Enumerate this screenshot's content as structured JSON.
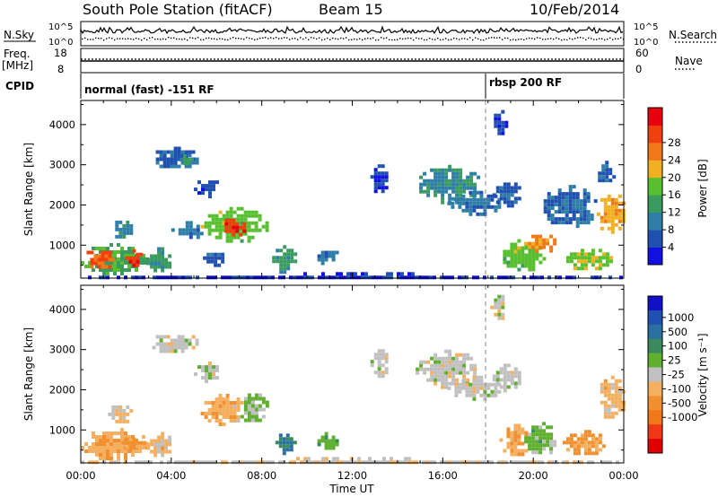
{
  "header": {
    "station": "South Pole Station (fitACF)",
    "beam": "Beam 15",
    "date": "10/Feb/2014"
  },
  "top_panels": {
    "nsky_label": "N.Sky",
    "nsearch_label": "N.Search",
    "nsky_ticks": [
      "10^5",
      "10^0"
    ],
    "nsearch_ticks": [
      "10^5",
      "10^0"
    ],
    "freq_label": "Freq.",
    "freq_unit": "[MHz]",
    "freq_ticks": [
      "18",
      "8"
    ],
    "nave_label": "Nave",
    "nave_ticks": [
      "60",
      "0"
    ],
    "cpid_label": "CPID",
    "cpid_modes": [
      {
        "name": "normal (fast) -151 RF",
        "start_hour": 0
      },
      {
        "name": "rbsp 200 RF",
        "start_hour": 18
      }
    ]
  },
  "colors": {
    "power_scale": [
      "#1010e0",
      "#2050b0",
      "#2e7ea8",
      "#3b9a60",
      "#58c030",
      "#f0b020",
      "#f07818",
      "#f04010",
      "#e80010"
    ],
    "velocity_scale": [
      "#e00000",
      "#f03818",
      "#f07818",
      "#f09030",
      "#f4b060",
      "#c0c0c0",
      "#60b030",
      "#3a8a5e",
      "#2a70a0",
      "#2050b0",
      "#1010c8"
    ]
  },
  "chart_data": [
    {
      "type": "heatmap",
      "name": "power",
      "xlabel": "",
      "ylabel": "Slant Range [km]",
      "xlim": [
        0,
        24
      ],
      "ylim": [
        180,
        4600
      ],
      "yticks": [
        "1000",
        "2000",
        "3000",
        "4000"
      ],
      "colorbar_label": "Power [dB]",
      "colorbar_ticks": [
        "4",
        "8",
        "12",
        "16",
        "20",
        "24",
        "28"
      ],
      "clim": [
        0,
        32
      ],
      "regions": [
        {
          "t0": 0.0,
          "t1": 2.9,
          "r0": 300,
          "r1": 1050,
          "v": 14
        },
        {
          "t0": 0.1,
          "t1": 1.4,
          "r0": 430,
          "r1": 950,
          "v": 25
        },
        {
          "t0": 1.8,
          "t1": 2.8,
          "r0": 520,
          "r1": 900,
          "v": 28
        },
        {
          "t0": 1.2,
          "t1": 2.2,
          "r0": 1200,
          "r1": 1700,
          "v": 10
        },
        {
          "t0": 2.9,
          "t1": 4.0,
          "r0": 350,
          "r1": 950,
          "v": 12
        },
        {
          "t0": 3.0,
          "t1": 5.2,
          "r0": 2950,
          "r1": 3450,
          "v": 6
        },
        {
          "t0": 4.2,
          "t1": 4.9,
          "r0": 3050,
          "r1": 3350,
          "v": 12
        },
        {
          "t0": 5.0,
          "t1": 6.1,
          "r0": 2200,
          "r1": 2700,
          "v": 5
        },
        {
          "t0": 5.3,
          "t1": 8.2,
          "r0": 1100,
          "r1": 1950,
          "v": 16
        },
        {
          "t0": 6.2,
          "t1": 7.2,
          "r0": 1250,
          "r1": 1750,
          "v": 27
        },
        {
          "t0": 4.0,
          "t1": 5.4,
          "r0": 1200,
          "r1": 1600,
          "v": 8
        },
        {
          "t0": 5.4,
          "t1": 6.4,
          "r0": 500,
          "r1": 900,
          "v": 6
        },
        {
          "t0": 8.3,
          "t1": 9.5,
          "r0": 350,
          "r1": 1000,
          "v": 12
        },
        {
          "t0": 10.3,
          "t1": 11.4,
          "r0": 550,
          "r1": 950,
          "v": 8
        },
        {
          "t0": 12.8,
          "t1": 13.5,
          "r0": 2300,
          "r1": 3100,
          "v": 4
        },
        {
          "t0": 14.8,
          "t1": 17.6,
          "r0": 2100,
          "r1": 3000,
          "v": 10
        },
        {
          "t0": 16.2,
          "t1": 18.6,
          "r0": 1800,
          "r1": 2350,
          "v": 8
        },
        {
          "t0": 18.2,
          "t1": 19.4,
          "r0": 2000,
          "r1": 2650,
          "v": 6
        },
        {
          "t0": 18.5,
          "t1": 20.5,
          "r0": 380,
          "r1": 1150,
          "v": 16
        },
        {
          "t0": 19.6,
          "t1": 21.0,
          "r0": 850,
          "r1": 1350,
          "v": 22
        },
        {
          "t0": 20.3,
          "t1": 22.8,
          "r0": 1500,
          "r1": 2500,
          "v": 7
        },
        {
          "t0": 21.3,
          "t1": 23.4,
          "r0": 380,
          "r1": 1000,
          "v": 17
        },
        {
          "t0": 22.8,
          "t1": 24.0,
          "r0": 1300,
          "r1": 2350,
          "v": 20
        },
        {
          "t0": 22.7,
          "t1": 23.6,
          "r0": 2600,
          "r1": 3100,
          "v": 6
        },
        {
          "t0": 18.1,
          "t1": 18.8,
          "r0": 3800,
          "r1": 4450,
          "v": 3
        },
        {
          "t0": 0.0,
          "t1": 24.0,
          "r0": 180,
          "r1": 330,
          "v": 3
        }
      ]
    },
    {
      "type": "heatmap",
      "name": "velocity",
      "xlabel": "Time UT",
      "ylabel": "Slant Range [km]",
      "xlim": [
        0,
        24
      ],
      "ylim": [
        180,
        4600
      ],
      "xticks": [
        "00:00",
        "04:00",
        "08:00",
        "12:00",
        "16:00",
        "20:00",
        "00:00"
      ],
      "yticks": [
        "1000",
        "2000",
        "3000",
        "4000"
      ],
      "colorbar_label": "Velocity [m s⁻¹]",
      "colorbar_ticks": [
        "1000",
        "500",
        "100",
        "25",
        "-25",
        "-100",
        "-500",
        "-1000"
      ],
      "clim": [
        -1200,
        1200
      ],
      "regions": [
        {
          "t0": 0.0,
          "t1": 2.9,
          "r0": 300,
          "r1": 1050,
          "v": -300
        },
        {
          "t0": 1.8,
          "t1": 2.8,
          "r0": 500,
          "r1": 900,
          "v": -400
        },
        {
          "t0": 1.2,
          "t1": 2.2,
          "r0": 1200,
          "r1": 1700,
          "v": -150
        },
        {
          "t0": 2.9,
          "t1": 4.0,
          "r0": 350,
          "r1": 950,
          "v": -200
        },
        {
          "t0": 3.0,
          "t1": 5.2,
          "r0": 2950,
          "r1": 3450,
          "v": 10
        },
        {
          "t0": 5.0,
          "t1": 6.1,
          "r0": 2200,
          "r1": 2700,
          "v": 0
        },
        {
          "t0": 5.3,
          "t1": 7.2,
          "r0": 1150,
          "r1": 1900,
          "v": -250
        },
        {
          "t0": 6.9,
          "t1": 8.2,
          "r0": 1200,
          "r1": 2000,
          "v": 150
        },
        {
          "t0": 8.6,
          "t1": 9.4,
          "r0": 400,
          "r1": 1000,
          "v": 600
        },
        {
          "t0": 10.3,
          "t1": 11.4,
          "r0": 550,
          "r1": 950,
          "v": 250
        },
        {
          "t0": 12.8,
          "t1": 13.5,
          "r0": 2300,
          "r1": 3100,
          "v": 5
        },
        {
          "t0": 14.8,
          "t1": 17.6,
          "r0": 2100,
          "r1": 3000,
          "v": 0
        },
        {
          "t0": 16.2,
          "t1": 18.6,
          "r0": 1800,
          "r1": 2350,
          "v": 5
        },
        {
          "t0": 18.2,
          "t1": 19.4,
          "r0": 2000,
          "r1": 2650,
          "v": 0
        },
        {
          "t0": 18.5,
          "t1": 19.8,
          "r0": 380,
          "r1": 1150,
          "v": -300
        },
        {
          "t0": 19.6,
          "t1": 21.0,
          "r0": 400,
          "r1": 1200,
          "v": 200
        },
        {
          "t0": 21.3,
          "t1": 23.2,
          "r0": 400,
          "r1": 1000,
          "v": -350
        },
        {
          "t0": 22.8,
          "t1": 24.0,
          "r0": 1300,
          "r1": 2350,
          "v": -200
        },
        {
          "t0": 18.1,
          "t1": 18.8,
          "r0": 3800,
          "r1": 4450,
          "v": 5
        },
        {
          "t0": 0.0,
          "t1": 24.0,
          "r0": 180,
          "r1": 330,
          "v": -60
        }
      ]
    }
  ]
}
